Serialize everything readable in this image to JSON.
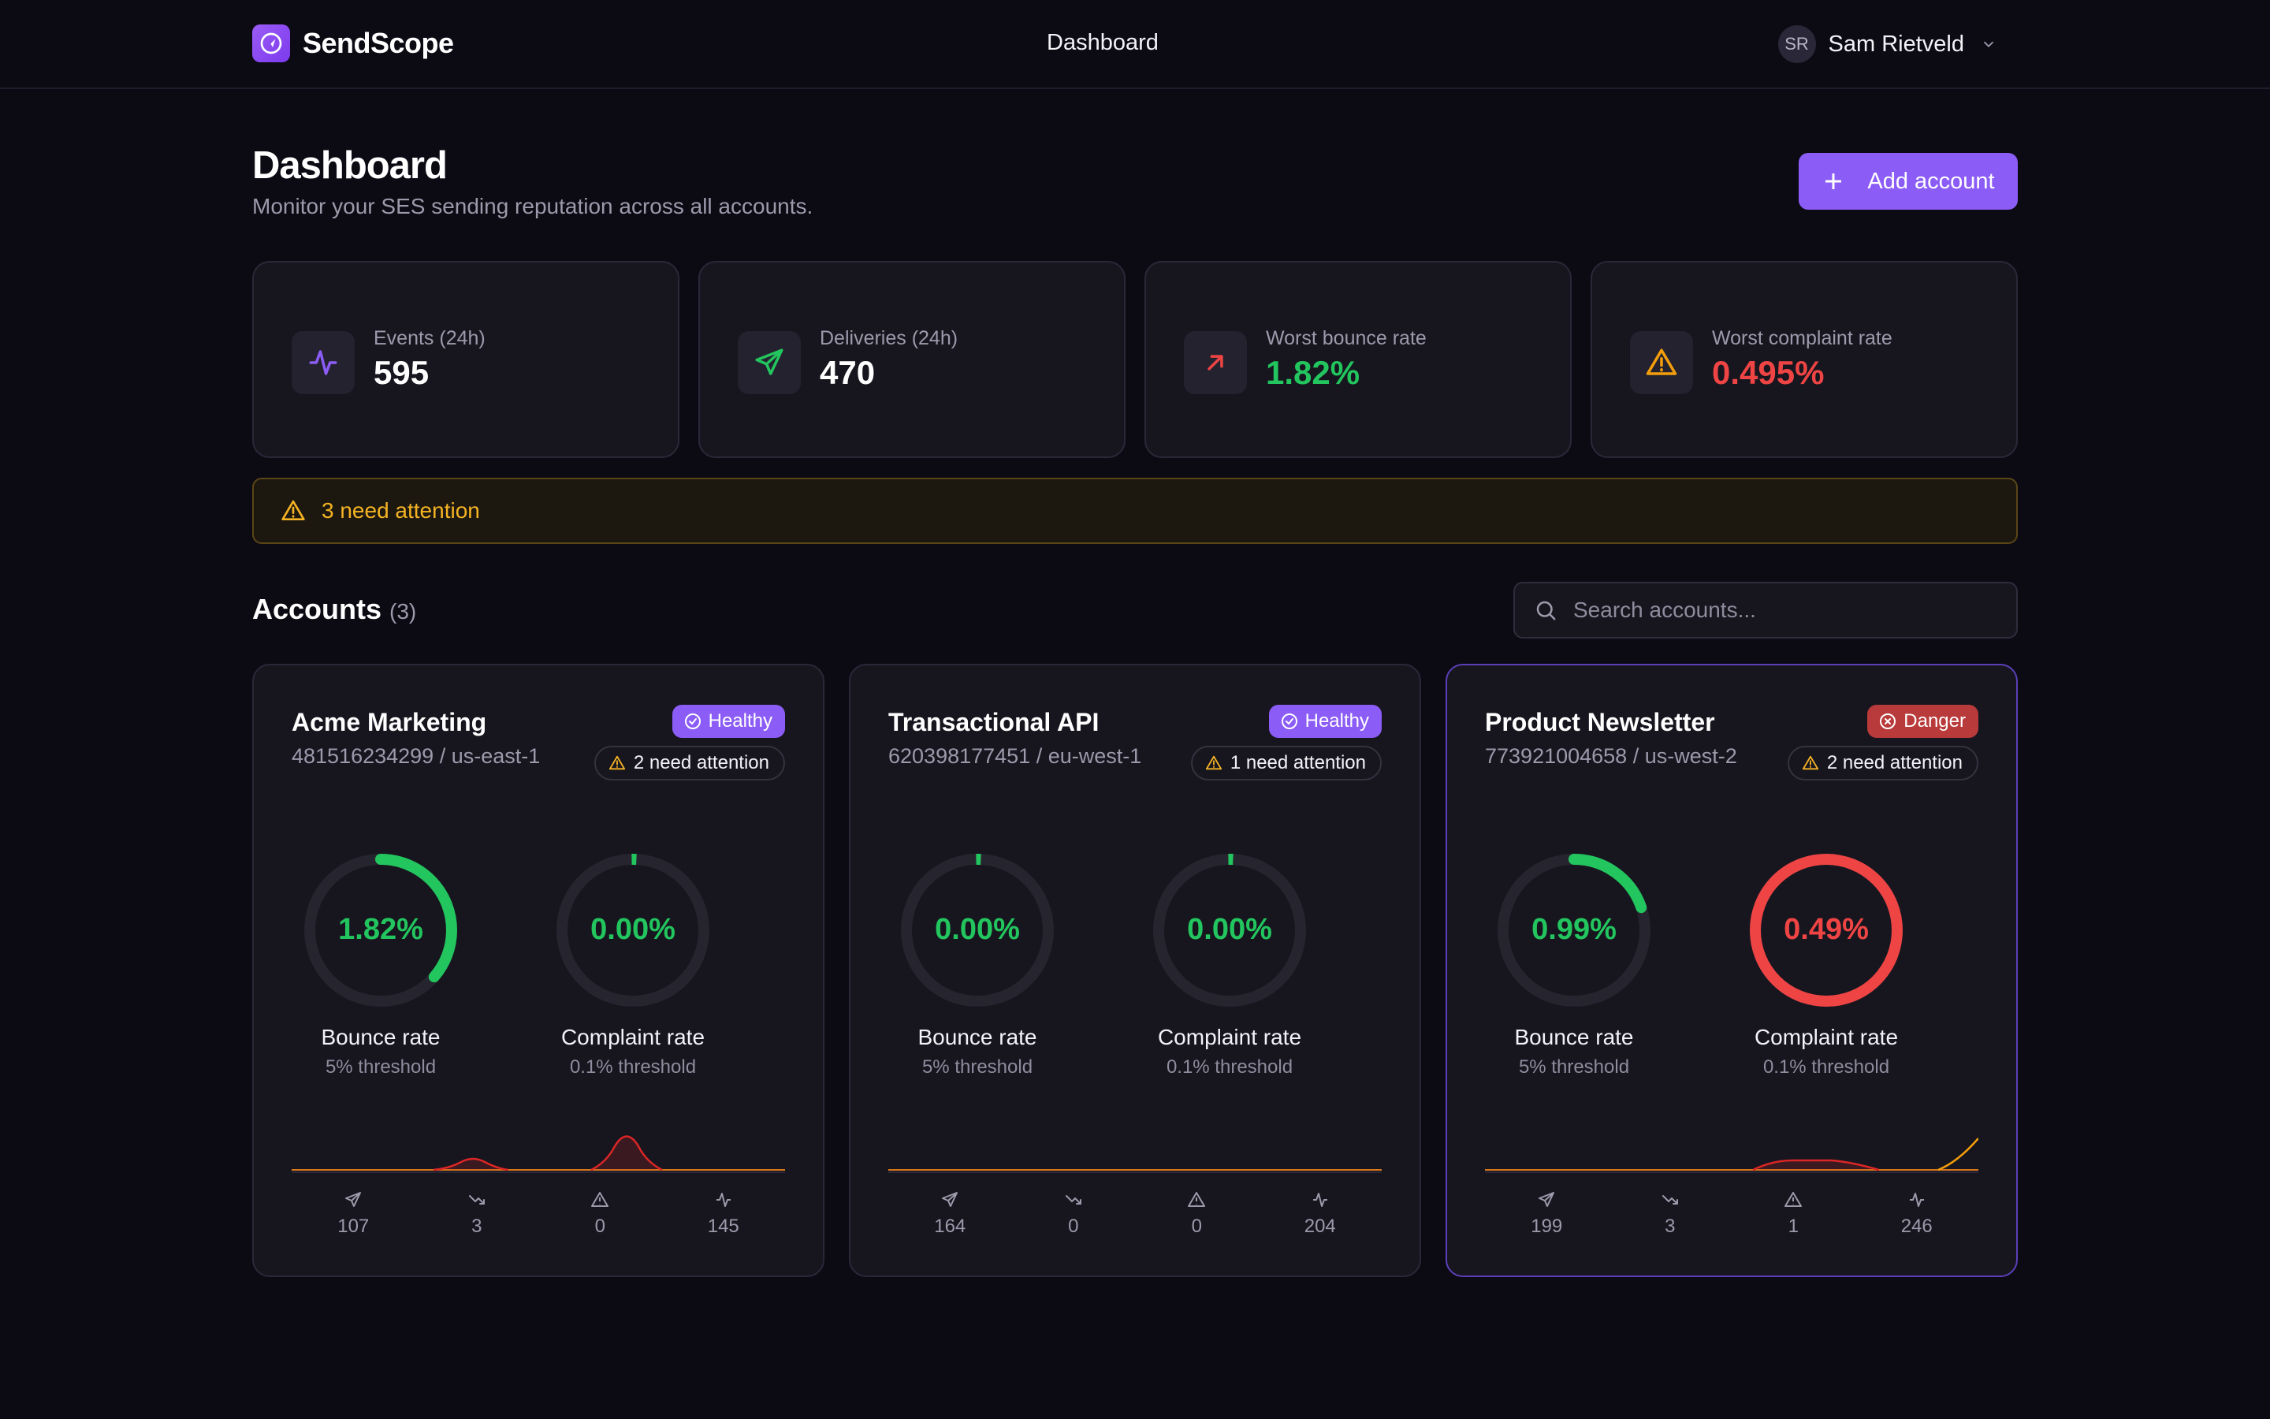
{
  "app": {
    "name": "SendScope"
  },
  "nav": {
    "current": "Dashboard"
  },
  "user": {
    "initials": "SR",
    "name": "Sam Rietveld"
  },
  "header": {
    "title": "Dashboard",
    "subtitle": "Monitor your SES sending reputation across all accounts.",
    "add_button": "Add account"
  },
  "stats": [
    {
      "label": "Events (24h)",
      "value": "595",
      "icon": "activity-icon",
      "value_color": "#ffffff"
    },
    {
      "label": "Deliveries (24h)",
      "value": "470",
      "icon": "send-icon",
      "value_color": "#ffffff"
    },
    {
      "label": "Worst bounce rate",
      "value": "1.82%",
      "icon": "arrow-up-right-icon",
      "value_color": "#22c55e"
    },
    {
      "label": "Worst complaint rate",
      "value": "0.495%",
      "icon": "warning-icon",
      "value_color": "#ef4444"
    }
  ],
  "attention_banner": {
    "text": "3 need attention"
  },
  "accounts": {
    "title": "Accounts",
    "count": "(3)",
    "search_placeholder": "Search accounts...",
    "items": [
      {
        "name": "Acme Marketing",
        "id_region": "481516234299 / us-east-1",
        "status": "Healthy",
        "attention": "2 need attention",
        "bounce": {
          "value": "1.82%",
          "fraction": 0.364,
          "color": "#22c55e",
          "label": "Bounce rate",
          "threshold": "5% threshold"
        },
        "complaint": {
          "value": "0.00%",
          "fraction": 0,
          "color": "#22c55e",
          "label": "Complaint rate",
          "threshold": "0.1% threshold"
        },
        "metrics": {
          "sent": "107",
          "bounces": "3",
          "complaints": "0",
          "events": "145"
        }
      },
      {
        "name": "Transactional API",
        "id_region": "620398177451 / eu-west-1",
        "status": "Healthy",
        "attention": "1 need attention",
        "bounce": {
          "value": "0.00%",
          "fraction": 0,
          "color": "#22c55e",
          "label": "Bounce rate",
          "threshold": "5% threshold"
        },
        "complaint": {
          "value": "0.00%",
          "fraction": 0,
          "color": "#22c55e",
          "label": "Complaint rate",
          "threshold": "0.1% threshold"
        },
        "metrics": {
          "sent": "164",
          "bounces": "0",
          "complaints": "0",
          "events": "204"
        }
      },
      {
        "name": "Product Newsletter",
        "id_region": "773921004658 / us-west-2",
        "status": "Danger",
        "attention": "2 need attention",
        "bounce": {
          "value": "0.99%",
          "fraction": 0.198,
          "color": "#22c55e",
          "label": "Bounce rate",
          "threshold": "5% threshold"
        },
        "complaint": {
          "value": "0.49%",
          "fraction": 1,
          "color": "#ef4444",
          "label": "Complaint rate",
          "threshold": "0.1% threshold"
        },
        "metrics": {
          "sent": "199",
          "bounces": "3",
          "complaints": "1",
          "events": "246"
        }
      }
    ]
  },
  "colors": {
    "accent": "#8b5cf6",
    "healthy": "#22c55e",
    "danger": "#ef4444",
    "warning": "#f5b324"
  }
}
